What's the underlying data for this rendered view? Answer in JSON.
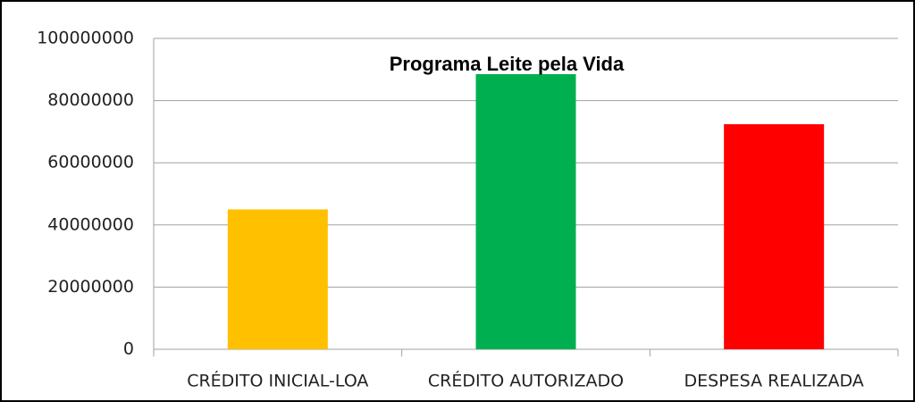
{
  "chart_data": {
    "type": "bar",
    "title": "Programa Leite pela Vida",
    "categories": [
      "CRÉDITO INICIAL-LOA",
      "CRÉDITO AUTORIZADO",
      "DESPESA REALIZADA"
    ],
    "values": [
      45000000,
      88500000,
      72400000
    ],
    "colors": [
      "#ffc000",
      "#00b050",
      "#ff0000"
    ],
    "ylim": [
      0,
      100000000
    ],
    "yticks": [
      0,
      20000000,
      40000000,
      60000000,
      80000000,
      100000000
    ],
    "grid": true
  }
}
